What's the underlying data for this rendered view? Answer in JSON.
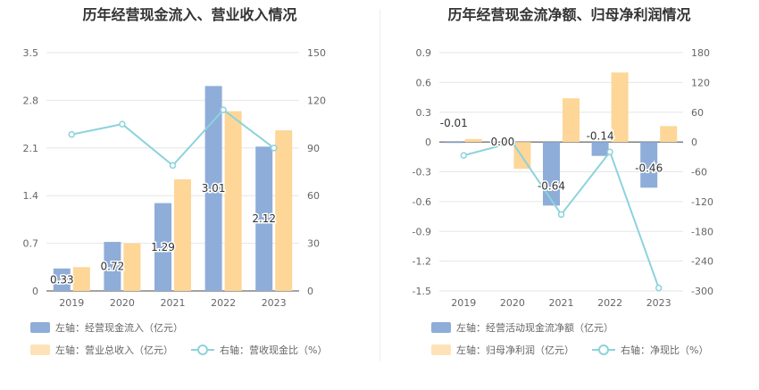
{
  "chart_data": [
    {
      "type": "bar",
      "title": "历年经营现金流入、营业收入情况",
      "categories": [
        "2019",
        "2020",
        "2021",
        "2022",
        "2023"
      ],
      "left_axis": {
        "min": 0,
        "max": 3.5,
        "ticks": [
          "0",
          "0.7",
          "1.4",
          "2.1",
          "2.8",
          "3.5"
        ]
      },
      "right_axis": {
        "min": 0,
        "max": 150,
        "ticks": [
          "0",
          "30",
          "60",
          "90",
          "120",
          "150"
        ]
      },
      "series": [
        {
          "name": "左轴：经营现金流入（亿元）",
          "kind": "bar",
          "axis": "left",
          "color": "#8eadd9",
          "values": [
            0.33,
            0.72,
            1.29,
            3.01,
            2.12
          ],
          "labels": [
            "0.33",
            "0.72",
            "1.29",
            "3.01",
            "2.12"
          ]
        },
        {
          "name": "左轴：营业总收入（亿元）",
          "kind": "bar",
          "axis": "left",
          "color": "#fdd698",
          "values": [
            0.35,
            0.7,
            1.64,
            2.64,
            2.36
          ]
        },
        {
          "name": "右轴：营收现金比（%）",
          "kind": "line",
          "axis": "right",
          "color": "#8cd3dc",
          "values": [
            98.5,
            105,
            79,
            114,
            90
          ]
        }
      ],
      "grid": true,
      "legend_position": "bottom"
    },
    {
      "type": "bar",
      "title": "历年经营现金流净额、归母净利润情况",
      "categories": [
        "2019",
        "2020",
        "2021",
        "2022",
        "2023"
      ],
      "left_axis": {
        "min": -1.5,
        "max": 0.9,
        "ticks": [
          "-1.5",
          "-1.2",
          "-0.9",
          "-0.6",
          "-0.3",
          "0",
          "0.3",
          "0.6",
          "0.9"
        ]
      },
      "right_axis": {
        "min": -300,
        "max": 180,
        "ticks": [
          "-300",
          "-240",
          "-180",
          "-120",
          "-60",
          "0",
          "60",
          "120",
          "180"
        ]
      },
      "series": [
        {
          "name": "左轴：经营活动现金流净额（亿元）",
          "kind": "bar",
          "axis": "left",
          "color": "#8eadd9",
          "values": [
            -0.01,
            0.0,
            -0.64,
            -0.14,
            -0.46
          ],
          "labels": [
            "-0.01",
            "0.00",
            "-0.64",
            "-0.14",
            "-0.46"
          ]
        },
        {
          "name": "左轴：归母净利润（亿元）",
          "kind": "bar",
          "axis": "left",
          "color": "#fdd698",
          "values": [
            0.03,
            -0.27,
            0.44,
            0.7,
            0.16
          ]
        },
        {
          "name": "右轴：净现比（%）",
          "kind": "line",
          "axis": "right",
          "color": "#8cd3dc",
          "values": [
            -27,
            -1,
            -146,
            -20,
            -294
          ]
        }
      ],
      "grid": true,
      "legend_position": "bottom"
    }
  ]
}
